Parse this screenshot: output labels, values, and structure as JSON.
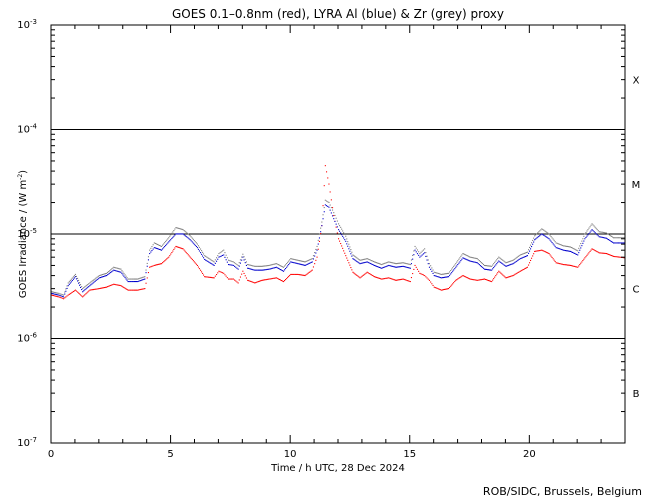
{
  "chart_data": {
    "type": "scatter",
    "title": "GOES 0.1–0.8nm (red), LYRA Al (blue) & Zr (grey) proxy",
    "xlabel": "Time / h UTC, 28 Dec 2024",
    "ylabel": "GOES Irradiance / (W m",
    "ylabel_sup": "-2",
    "ylabel_end": ")",
    "xlim": [
      0,
      24
    ],
    "ylim": [
      1e-07,
      0.001
    ],
    "y_scale": "log",
    "x_ticks": [
      0,
      5,
      10,
      15,
      20
    ],
    "x_tick_labels": [
      "0",
      "5",
      "10",
      "15",
      "20"
    ],
    "y_ticks": [
      {
        "value": 0.001,
        "base": "10",
        "exp": "-3"
      },
      {
        "value": 0.0001,
        "base": "10",
        "exp": "-4"
      },
      {
        "value": 1e-05,
        "base": "10",
        "exp": "-5"
      },
      {
        "value": 1e-06,
        "base": "10",
        "exp": "-6"
      },
      {
        "value": 1e-07,
        "base": "10",
        "exp": "-7"
      }
    ],
    "reference_lines": [
      0.0001,
      1e-05,
      1e-06
    ],
    "class_labels": [
      {
        "label": "X",
        "value": 0.0003
      },
      {
        "label": "M",
        "value": 3e-05
      },
      {
        "label": "C",
        "value": 3e-06
      },
      {
        "label": "B",
        "value": 3e-07
      }
    ],
    "series": [
      {
        "color": "#ff0000",
        "x": [
          0.0,
          0.3,
          0.5,
          0.7,
          1.0,
          1.3,
          1.6,
          2.0,
          2.3,
          2.6,
          2.9,
          3.2,
          3.6,
          3.9,
          4.1,
          4.3,
          4.6,
          4.9,
          5.2,
          5.5,
          5.8,
          6.1,
          6.4,
          6.8,
          7.0,
          7.2,
          7.4,
          7.6,
          7.8,
          8.0,
          8.2,
          8.5,
          8.8,
          9.1,
          9.4,
          9.7,
          10.0,
          10.3,
          10.6,
          10.9,
          11.1,
          11.3,
          11.45,
          11.6,
          11.8,
          12.0,
          12.3,
          12.6,
          12.9,
          13.2,
          13.5,
          13.8,
          14.1,
          14.4,
          14.7,
          15.0,
          15.2,
          15.4,
          15.6,
          15.8,
          16.0,
          16.3,
          16.6,
          16.9,
          17.2,
          17.5,
          17.8,
          18.1,
          18.4,
          18.7,
          19.0,
          19.3,
          19.6,
          19.9,
          20.2,
          20.5,
          20.8,
          21.1,
          21.4,
          21.7,
          22.0,
          22.3,
          22.6,
          22.9,
          23.2,
          23.5,
          24.0
        ],
        "y": [
          2.6e-06,
          2.5e-06,
          2.4e-06,
          2.6e-06,
          2.9e-06,
          2.5e-06,
          2.9e-06,
          3e-06,
          3.1e-06,
          3.3e-06,
          3.2e-06,
          2.9e-06,
          2.9e-06,
          3e-06,
          4.8e-06,
          5e-06,
          5.2e-06,
          6e-06,
          7.6e-06,
          7.2e-06,
          6e-06,
          5e-06,
          3.9e-06,
          3.8e-06,
          4.4e-06,
          4.2e-06,
          3.7e-06,
          3.7e-06,
          3.4e-06,
          4.4e-06,
          3.6e-06,
          3.4e-06,
          3.6e-06,
          3.7e-06,
          3.8e-06,
          3.5e-06,
          4.1e-06,
          4.1e-06,
          4e-06,
          4.5e-06,
          6e-06,
          1.2e-05,
          4.5e-05,
          3e-05,
          1.5e-05,
          9e-06,
          6.2e-06,
          4.3e-06,
          3.8e-06,
          4.3e-06,
          3.9e-06,
          3.7e-06,
          3.8e-06,
          3.6e-06,
          3.7e-06,
          3.5e-06,
          5e-06,
          4.2e-06,
          4e-06,
          3.6e-06,
          3.1e-06,
          2.9e-06,
          3e-06,
          3.6e-06,
          4e-06,
          3.7e-06,
          3.6e-06,
          3.7e-06,
          3.5e-06,
          4.4e-06,
          3.8e-06,
          4e-06,
          4.4e-06,
          4.8e-06,
          6.8e-06,
          7e-06,
          6.5e-06,
          5.3e-06,
          5.1e-06,
          5e-06,
          4.8e-06,
          5.9e-06,
          7.2e-06,
          6.6e-06,
          6.5e-06,
          6.1e-06,
          5.9e-06
        ]
      },
      {
        "color": "#0000cc",
        "x": [
          0.0,
          0.3,
          0.5,
          0.7,
          1.0,
          1.3,
          1.6,
          2.0,
          2.3,
          2.6,
          2.9,
          3.2,
          3.6,
          3.9,
          4.1,
          4.3,
          4.6,
          4.9,
          5.2,
          5.5,
          5.8,
          6.1,
          6.4,
          6.8,
          7.0,
          7.2,
          7.4,
          7.6,
          7.8,
          8.0,
          8.2,
          8.5,
          8.8,
          9.1,
          9.4,
          9.7,
          10.0,
          10.3,
          10.6,
          10.9,
          11.1,
          11.3,
          11.45,
          11.6,
          11.8,
          12.0,
          12.3,
          12.6,
          12.9,
          13.2,
          13.5,
          13.8,
          14.1,
          14.4,
          14.7,
          15.0,
          15.2,
          15.4,
          15.6,
          15.8,
          16.0,
          16.3,
          16.6,
          16.9,
          17.2,
          17.5,
          17.8,
          18.1,
          18.4,
          18.7,
          19.0,
          19.3,
          19.6,
          19.9,
          20.2,
          20.5,
          20.8,
          21.1,
          21.4,
          21.7,
          22.0,
          22.3,
          22.6,
          22.9,
          23.2,
          23.5,
          24.0
        ],
        "y": [
          2.7e-06,
          2.6e-06,
          2.5e-06,
          3.2e-06,
          3.9e-06,
          2.8e-06,
          3.2e-06,
          3.8e-06,
          4e-06,
          4.5e-06,
          4.3e-06,
          3.5e-06,
          3.5e-06,
          3.7e-06,
          6.5e-06,
          7.4e-06,
          7e-06,
          8.4e-06,
          1e-05,
          1e-05,
          8.8e-06,
          7.4e-06,
          5.7e-06,
          5e-06,
          6e-06,
          6.3e-06,
          5.1e-06,
          5e-06,
          4.6e-06,
          6e-06,
          4.7e-06,
          4.5e-06,
          4.5e-06,
          4.6e-06,
          4.8e-06,
          4.4e-06,
          5.4e-06,
          5.2e-06,
          5e-06,
          5.4e-06,
          7e-06,
          1.2e-05,
          1.9e-05,
          1.8e-05,
          1.4e-05,
          1.1e-05,
          8.5e-06,
          5.8e-06,
          5.2e-06,
          5.4e-06,
          5e-06,
          4.7e-06,
          5e-06,
          4.8e-06,
          4.9e-06,
          4.7e-06,
          7e-06,
          6e-06,
          6.6e-06,
          4.8e-06,
          4e-06,
          3.8e-06,
          3.9e-06,
          4.8e-06,
          5.9e-06,
          5.5e-06,
          5.3e-06,
          4.6e-06,
          4.5e-06,
          5.5e-06,
          4.9e-06,
          5.2e-06,
          5.8e-06,
          6.2e-06,
          8.8e-06,
          1e-05,
          9e-06,
          7.4e-06,
          7e-06,
          6.8e-06,
          6.3e-06,
          9e-06,
          1.1e-05,
          9.4e-06,
          9.1e-06,
          8.2e-06,
          8.2e-06
        ]
      },
      {
        "color": "#808080",
        "x": [
          0.0,
          0.3,
          0.5,
          0.7,
          1.0,
          1.3,
          1.6,
          2.0,
          2.3,
          2.6,
          2.9,
          3.2,
          3.6,
          3.9,
          4.1,
          4.3,
          4.6,
          4.9,
          5.2,
          5.5,
          5.8,
          6.1,
          6.4,
          6.8,
          7.0,
          7.2,
          7.4,
          7.6,
          7.8,
          8.0,
          8.2,
          8.5,
          8.8,
          9.1,
          9.4,
          9.7,
          10.0,
          10.3,
          10.6,
          10.9,
          11.1,
          11.3,
          11.45,
          11.6,
          11.8,
          12.0,
          12.3,
          12.6,
          12.9,
          13.2,
          13.5,
          13.8,
          14.1,
          14.4,
          14.7,
          15.0,
          15.2,
          15.4,
          15.6,
          15.8,
          16.0,
          16.3,
          16.6,
          16.9,
          17.2,
          17.5,
          17.8,
          18.1,
          18.4,
          18.7,
          19.0,
          19.3,
          19.6,
          19.9,
          20.2,
          20.5,
          20.8,
          21.1,
          21.4,
          21.7,
          22.0,
          22.3,
          22.6,
          22.9,
          23.2,
          23.5,
          24.0
        ],
        "y": [
          2.8e-06,
          2.7e-06,
          2.6e-06,
          3.4e-06,
          4.1e-06,
          3e-06,
          3.4e-06,
          4e-06,
          4.2e-06,
          4.8e-06,
          4.6e-06,
          3.7e-06,
          3.7e-06,
          3.9e-06,
          7e-06,
          8.2e-06,
          7.6e-06,
          9.2e-06,
          1.15e-05,
          1.1e-05,
          9.6e-06,
          8e-06,
          6.2e-06,
          5.4e-06,
          6.5e-06,
          7e-06,
          5.6e-06,
          5.4e-06,
          5e-06,
          6.4e-06,
          5.1e-06,
          4.9e-06,
          4.9e-06,
          5e-06,
          5.2e-06,
          4.8e-06,
          5.8e-06,
          5.6e-06,
          5.4e-06,
          5.8e-06,
          7.6e-06,
          1.3e-05,
          2.1e-05,
          2e-05,
          1.6e-05,
          1.25e-05,
          9.5e-06,
          6.3e-06,
          5.6e-06,
          5.8e-06,
          5.4e-06,
          5.1e-06,
          5.4e-06,
          5.2e-06,
          5.3e-06,
          5.1e-06,
          7.6e-06,
          6.5e-06,
          7.2e-06,
          5.2e-06,
          4.3e-06,
          4.1e-06,
          4.2e-06,
          5.2e-06,
          6.5e-06,
          6e-06,
          5.8e-06,
          5e-06,
          4.9e-06,
          6e-06,
          5.3e-06,
          5.6e-06,
          6.3e-06,
          6.7e-06,
          9.6e-06,
          1.12e-05,
          1e-05,
          8.2e-06,
          7.7e-06,
          7.5e-06,
          6.9e-06,
          1e-05,
          1.25e-05,
          1.05e-05,
          1.02e-05,
          9.2e-06,
          9.2e-06
        ]
      }
    ],
    "grid": false,
    "legend": "none"
  },
  "credit": "ROB/SIDC, Brussels, Belgium"
}
